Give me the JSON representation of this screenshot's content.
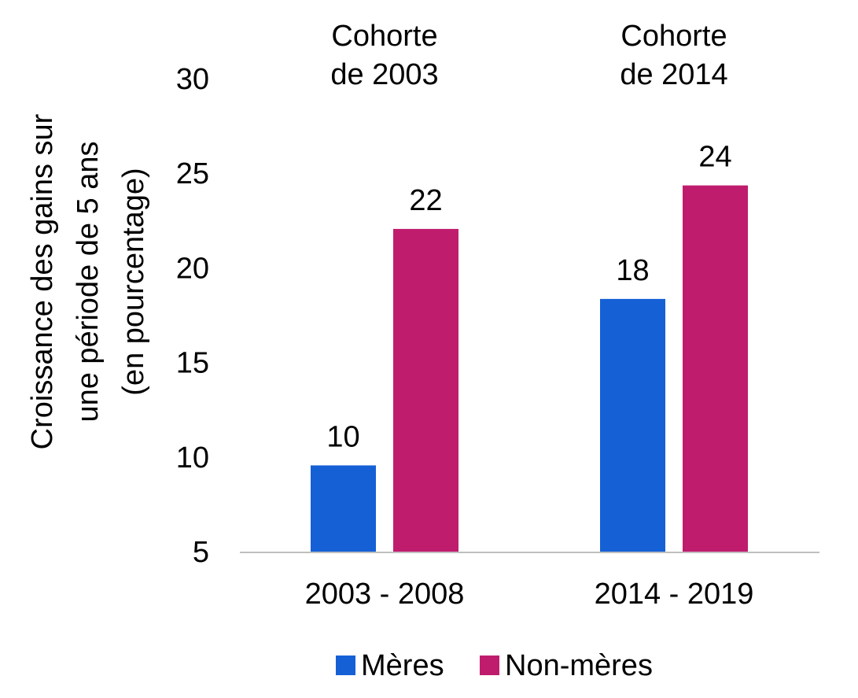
{
  "chart_data": {
    "type": "bar",
    "title": "",
    "xlabel": "",
    "ylabel": [
      "Croissance des gains sur",
      "une période de 5 ans",
      "(en pourcentage)"
    ],
    "ylim": [
      5,
      30
    ],
    "yticks": [
      5,
      10,
      15,
      20,
      25,
      30
    ],
    "categories": [
      "2003 - 2008",
      "2014 - 2019"
    ],
    "group_annotations": [
      [
        "Cohorte",
        "de 2003"
      ],
      [
        "Cohorte",
        "de 2014"
      ]
    ],
    "series": [
      {
        "name": "Mères",
        "color": "#1660d6",
        "values": [
          9.6,
          18.4
        ],
        "labels": [
          "10",
          "18"
        ]
      },
      {
        "name": "Non-mères",
        "color": "#c01c6e",
        "values": [
          22.1,
          24.4
        ],
        "labels": [
          "22",
          "24"
        ]
      }
    ],
    "legend_position": "bottom-center",
    "grid": false
  }
}
